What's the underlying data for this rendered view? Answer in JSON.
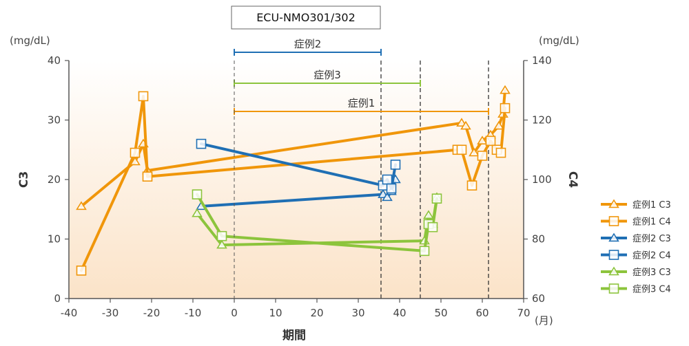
{
  "chart_data": {
    "type": "line",
    "title": "ECU-NMO301/302",
    "xlabel": "期間",
    "x_unit": "(月)",
    "y_left_label": "C3",
    "y_left_unit": "(mg/dL)",
    "y_right_label": "C4",
    "y_right_unit": "(mg/dL)",
    "xlim": [
      -40,
      70
    ],
    "ylim_left": [
      0,
      40
    ],
    "ylim_right": [
      60,
      140
    ],
    "x_ticks": [
      "-40",
      "-30",
      "-20",
      "-10",
      "0",
      "10",
      "20",
      "30",
      "40",
      "50",
      "60",
      "70"
    ],
    "y_left_ticks": [
      "0",
      "10",
      "20",
      "30",
      "40"
    ],
    "y_right_ticks": [
      "60",
      "80",
      "100",
      "120",
      "140"
    ],
    "background": "vertical gradient, light peach to white",
    "treatment_periods": [
      {
        "label": "症例2",
        "start": 0,
        "end": 35.5,
        "color": "#1f6fb4"
      },
      {
        "label": "症例3",
        "start": 0,
        "end": 45,
        "color": "#8cc43c"
      },
      {
        "label": "症例1",
        "start": 0,
        "end": 61.5,
        "color": "#f0960a"
      }
    ],
    "series": [
      {
        "name": "症例1 C3",
        "marker": "triangle",
        "axis": "left",
        "color": "#f0960a",
        "points": [
          [
            -37,
            15.5
          ],
          [
            -24,
            23
          ],
          [
            -22,
            26
          ],
          [
            -21,
            21.5
          ],
          [
            55,
            29.5
          ],
          [
            56,
            29
          ],
          [
            58,
            24.5
          ],
          [
            60,
            26.5
          ],
          [
            62,
            27.5
          ],
          [
            64,
            29
          ],
          [
            65,
            31
          ],
          [
            65.5,
            35
          ]
        ]
      },
      {
        "name": "症例1 C4",
        "marker": "square",
        "axis": "left",
        "color": "#f0960a",
        "points": [
          [
            -37,
            4.7
          ],
          [
            -24,
            24.5
          ],
          [
            -22,
            34
          ],
          [
            -21,
            20.5
          ],
          [
            54,
            25
          ],
          [
            55,
            25
          ],
          [
            57.5,
            19
          ],
          [
            60,
            24
          ],
          [
            62,
            26.5
          ],
          [
            63.5,
            25
          ],
          [
            64.5,
            24.5
          ],
          [
            65.5,
            32
          ]
        ]
      },
      {
        "name": "症例2 C3",
        "marker": "triangle",
        "axis": "left",
        "color": "#1f6fb4",
        "points": [
          [
            -8,
            15.5
          ],
          [
            36,
            17.5
          ],
          [
            37,
            17
          ],
          [
            38,
            18
          ],
          [
            39,
            20
          ]
        ]
      },
      {
        "name": "症例2 C4",
        "marker": "square",
        "axis": "left",
        "color": "#1f6fb4",
        "points": [
          [
            -8,
            26
          ],
          [
            36,
            19
          ],
          [
            37,
            20
          ],
          [
            38,
            18.5
          ],
          [
            39,
            22.5
          ]
        ]
      },
      {
        "name": "症例3 C3",
        "marker": "triangle",
        "axis": "left",
        "color": "#8cc43c",
        "points": [
          [
            -9,
            14.3
          ],
          [
            -3,
            9
          ],
          [
            46,
            9.7
          ],
          [
            47,
            14
          ],
          [
            48,
            12.5
          ],
          [
            49,
            17
          ]
        ]
      },
      {
        "name": "症例3 C4",
        "marker": "square",
        "axis": "left",
        "color": "#8cc43c",
        "points": [
          [
            -9,
            17.5
          ],
          [
            -3,
            10.5
          ],
          [
            46,
            8
          ],
          [
            47,
            12.5
          ],
          [
            48,
            12
          ],
          [
            49,
            16.8
          ]
        ]
      }
    ],
    "legend_position": "right"
  }
}
